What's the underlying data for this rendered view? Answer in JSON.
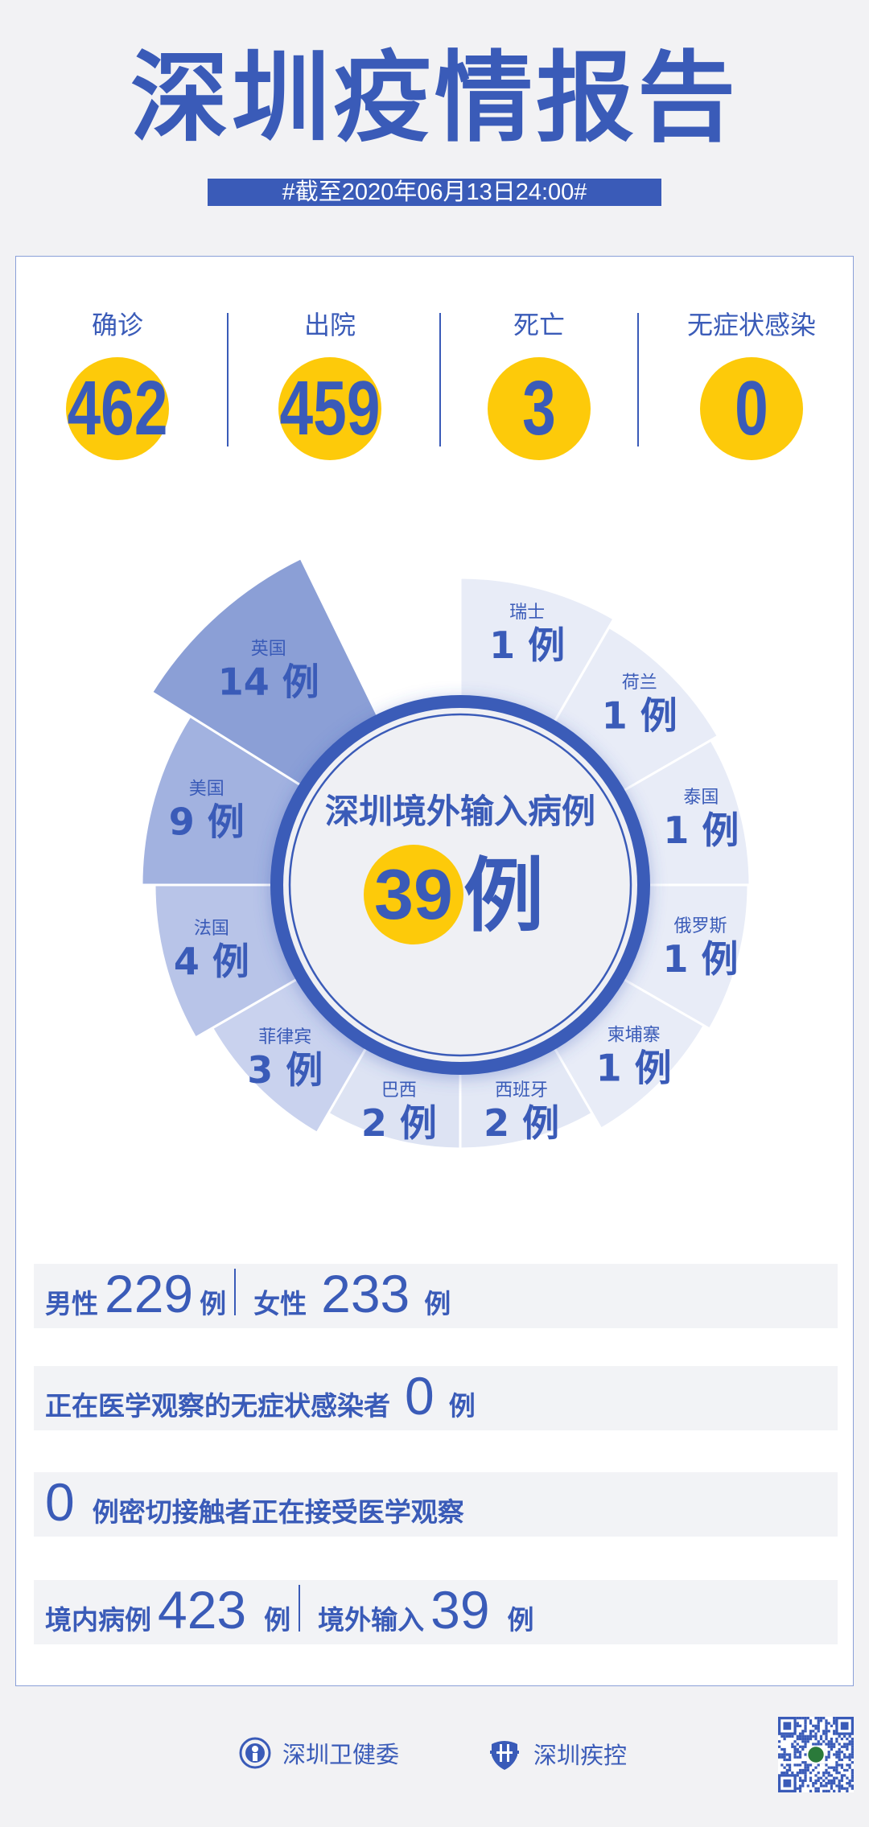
{
  "header": {
    "title": "深圳疫情报告",
    "date_banner": "#截至2020年06月13日24:00#"
  },
  "stats": [
    {
      "label": "确诊",
      "value": "462"
    },
    {
      "label": "出院",
      "value": "459"
    },
    {
      "label": "死亡",
      "value": "3"
    },
    {
      "label": "无症状感染",
      "value": "0"
    }
  ],
  "wheel": {
    "center_title": "深圳境外输入病例",
    "center_total": "39",
    "center_unit": "例",
    "unit": "例",
    "countries": [
      {
        "name": "瑞士",
        "count": 1,
        "color": "#e8ecf7"
      },
      {
        "name": "荷兰",
        "count": 1,
        "color": "#e8ecf7"
      },
      {
        "name": "泰国",
        "count": 1,
        "color": "#e8ecf7"
      },
      {
        "name": "俄罗斯",
        "count": 1,
        "color": "#e8ecf7"
      },
      {
        "name": "柬埔寨",
        "count": 1,
        "color": "#e8ecf7"
      },
      {
        "name": "西班牙",
        "count": 2,
        "color": "#e3e8f5"
      },
      {
        "name": "巴西",
        "count": 2,
        "color": "#dde3f3"
      },
      {
        "name": "菲律宾",
        "count": 3,
        "color": "#c9d2ee"
      },
      {
        "name": "法国",
        "count": 4,
        "color": "#b8c4e8"
      },
      {
        "name": "美国",
        "count": 9,
        "color": "#a2b2e0"
      },
      {
        "name": "英国",
        "count": 14,
        "color": "#8b9fd6"
      }
    ]
  },
  "rows": {
    "gender": {
      "male_label": "男性",
      "male": "229",
      "female_label": "女性",
      "female": "233",
      "unit": "例"
    },
    "asymptomatic": {
      "label": "正在医学观察的无症状感染者",
      "value": "0",
      "unit": "例"
    },
    "contacts": {
      "value": "0",
      "label": "例密切接触者正在接受医学观察"
    },
    "origin": {
      "local_label": "境内病例",
      "local": "423",
      "imported_label": "境外输入",
      "imported": "39",
      "unit": "例"
    }
  },
  "footer": {
    "org1": "深圳卫健委",
    "org2": "深圳疾控"
  },
  "colors": {
    "brand_blue": "#3a5bb8",
    "highlight_yellow": "#fdca0a"
  }
}
